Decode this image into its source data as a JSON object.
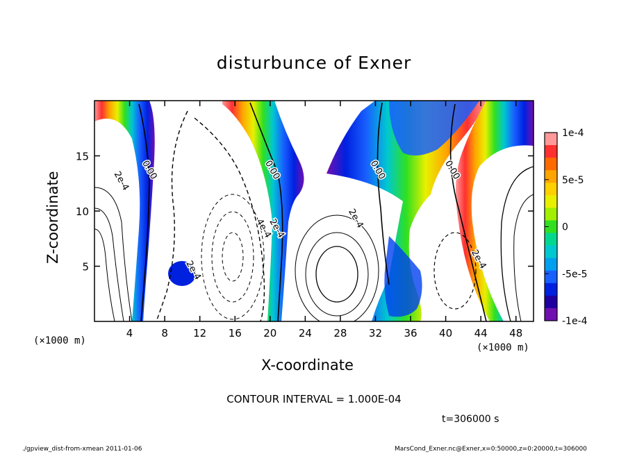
{
  "chart_data": {
    "type": "heatmap",
    "title": "disturbunce of Exner",
    "xlabel": "X-coordinate",
    "ylabel": "Z-coordinate",
    "x_unit": "(×1000 m)",
    "x_ticks": [
      4,
      8,
      12,
      16,
      20,
      24,
      28,
      32,
      36,
      40,
      44,
      48
    ],
    "y_ticks": [
      5,
      10,
      15
    ],
    "xlim": [
      0,
      50
    ],
    "ylim": [
      0,
      20
    ],
    "colorbar": {
      "min": -0.0001,
      "max": 0.0001,
      "tick_values": [
        0.0001,
        5e-05,
        0,
        -5e-05,
        -0.0001
      ],
      "tick_labels": [
        "1e-4",
        "5e-5",
        "0",
        "-5e-5",
        "-1e-4"
      ],
      "colors": [
        "#ff9999",
        "#ff3030",
        "#ff6a00",
        "#ffa500",
        "#ffd000",
        "#e8f000",
        "#a0f000",
        "#30e020",
        "#00d890",
        "#00c8d0",
        "#00a0f0",
        "#1860ff",
        "#0020e0",
        "#2000a0",
        "#7010b0"
      ]
    },
    "contour_labels": [
      {
        "text": "0.00",
        "x": 6.0,
        "y": 13.6
      },
      {
        "text": "0.00",
        "x": 20.0,
        "y": 13.6
      },
      {
        "text": "0.00",
        "x": 32.0,
        "y": 13.6
      },
      {
        "text": "0.00",
        "x": 40.5,
        "y": 13.6
      },
      {
        "text": "2e-4",
        "x": 2.8,
        "y": 12.6
      },
      {
        "text": "2e-4",
        "x": 29.5,
        "y": 9.2
      },
      {
        "text": "2e-4",
        "x": 20.5,
        "y": 8.3
      },
      {
        "text": "4e-4",
        "x": 19.0,
        "y": 8.3
      },
      {
        "text": "2e-4",
        "x": 11.0,
        "y": 4.5
      },
      {
        "text": "2e-4",
        "x": 43.5,
        "y": 5.5
      }
    ],
    "contour_interval": "CONTOUR INTERVAL = 1.000E-04",
    "time": "t=306000 s"
  },
  "footer": {
    "left": "./gpview_dist-from-xmean  2011-01-06",
    "right": "MarsCond_Exner.nc@Exner,x=0:50000,z=0:20000,t=306000"
  }
}
